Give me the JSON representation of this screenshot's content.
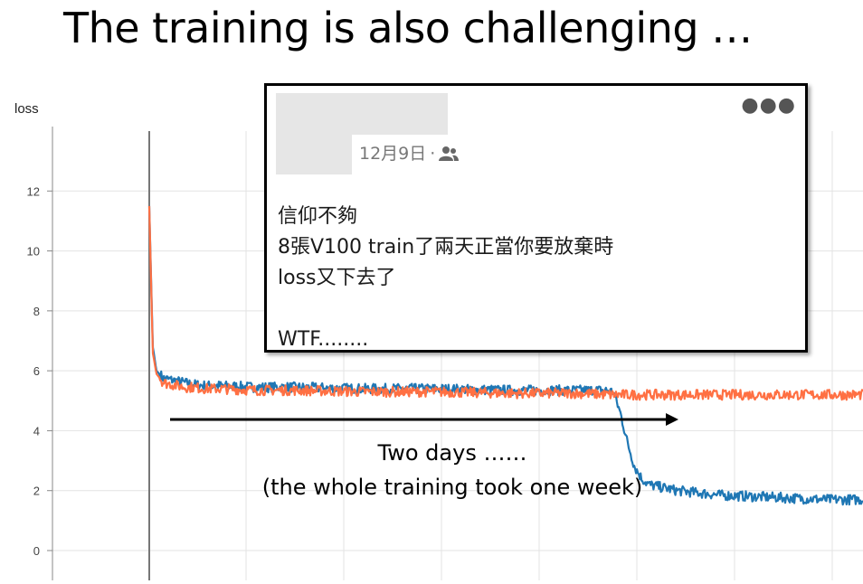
{
  "slide": {
    "title": "The training is also challenging …"
  },
  "post": {
    "date": "12月9日",
    "separator": "·",
    "audience_icon": "friends-icon",
    "menu_icon": "more-options-icon",
    "lines": [
      "信仰不夠",
      "8張V100 train了兩天正當你要放棄時",
      "loss又下去了",
      "",
      "WTF........"
    ]
  },
  "annotation": {
    "line1": "Two days ……",
    "line2": "(the whole training took one week)"
  },
  "chart_data": {
    "type": "line",
    "title": "loss",
    "xlabel": "",
    "ylabel": "",
    "ylim": [
      0,
      14
    ],
    "yticks": [
      0,
      2,
      4,
      6,
      8,
      10,
      12
    ],
    "xlim": [
      0,
      100
    ],
    "grid": true,
    "colors": {
      "blue": "#1f77b4",
      "orange": "#ff7043"
    },
    "series": [
      {
        "x": [
          0,
          0.5,
          1,
          2,
          3,
          4,
          5,
          6,
          8,
          10,
          15,
          20,
          30,
          40,
          50,
          60,
          64,
          65,
          66,
          67,
          68,
          69,
          70,
          72,
          74,
          76,
          78,
          80,
          85,
          90,
          95,
          100
        ],
        "values": [
          11.5,
          6.8,
          6.0,
          5.75,
          5.7,
          5.65,
          5.6,
          5.55,
          5.5,
          5.5,
          5.45,
          5.45,
          5.4,
          5.4,
          5.35,
          5.35,
          5.35,
          5.3,
          4.6,
          3.6,
          2.8,
          2.4,
          2.2,
          2.1,
          2.0,
          1.95,
          1.9,
          1.85,
          1.8,
          1.75,
          1.7,
          1.7
        ]
      },
      {
        "x": [
          0,
          0.5,
          1,
          2,
          3,
          4,
          5,
          6,
          8,
          10,
          15,
          20,
          30,
          40,
          50,
          60,
          65,
          70,
          75,
          80,
          85,
          90,
          95,
          100
        ],
        "values": [
          11.5,
          6.6,
          5.9,
          5.6,
          5.55,
          5.5,
          5.45,
          5.45,
          5.4,
          5.4,
          5.35,
          5.35,
          5.3,
          5.3,
          5.25,
          5.25,
          5.2,
          5.2,
          5.2,
          5.2,
          5.2,
          5.2,
          5.2,
          5.2
        ]
      }
    ]
  }
}
